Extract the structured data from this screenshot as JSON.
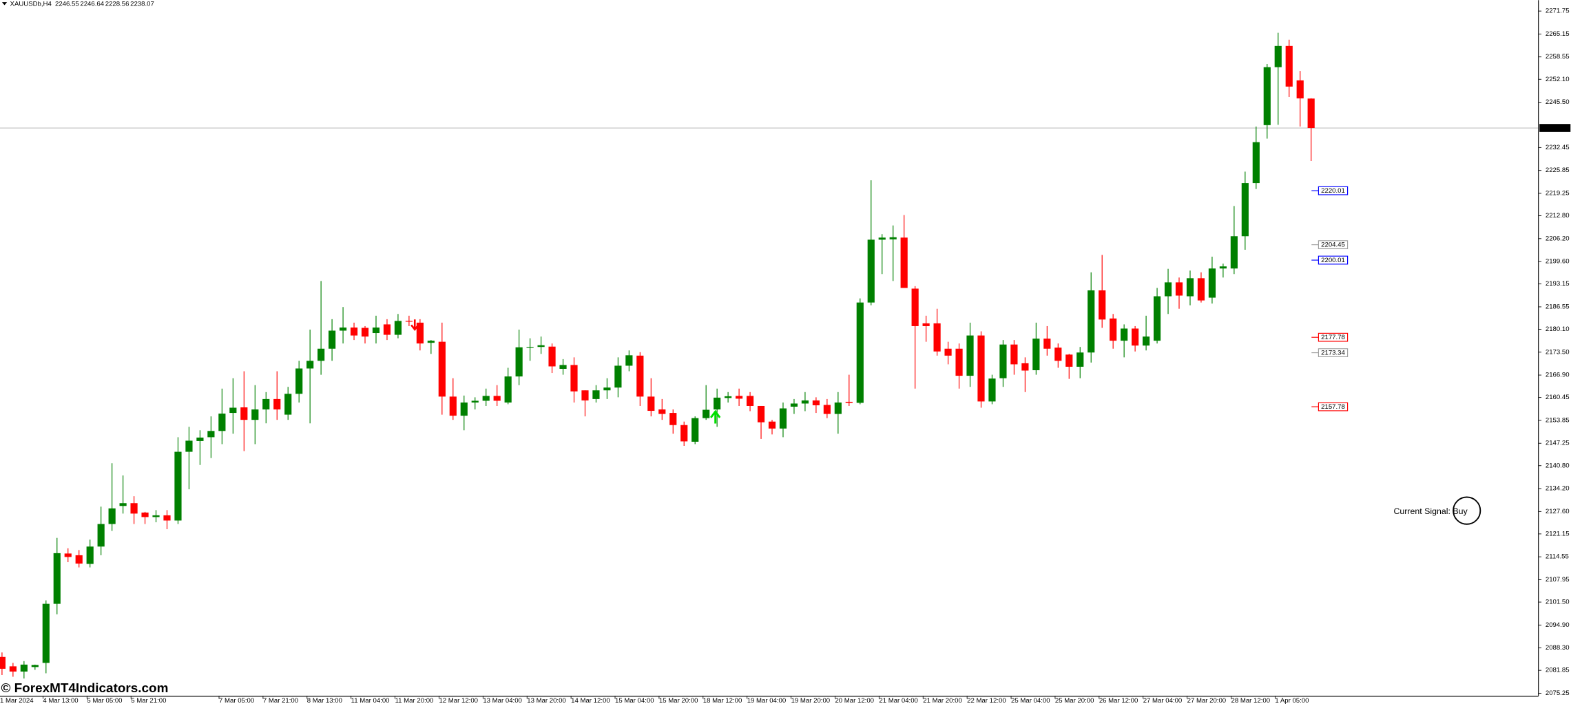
{
  "chart_data": {
    "type": "candlestick",
    "title": "XAUUSDb,H4",
    "header_ohlc": [
      2246.55,
      2246.64,
      2228.56,
      2238.07
    ],
    "watermark": "© ForexMT4Indicators.com",
    "signal_text": "Current Signal: Buy",
    "up_color": "#008000",
    "down_color": "#ff0000",
    "last_price": 2238.07,
    "ylim": [
      2074.5,
      2274.9
    ],
    "yticks": [
      2271.75,
      2265.15,
      2258.55,
      {
        "value": 2252.1,
        "label": "2252.10"
      },
      {
        "value": 2245.5,
        "label": "2245.50"
      },
      2232.45,
      2225.85,
      2219.25,
      {
        "value": 2212.8,
        "label": "2212.80"
      },
      {
        "value": 2206.2,
        "label": "2206.20"
      },
      {
        "value": 2199.6,
        "label": "2199.60"
      },
      2193.15,
      2186.55,
      {
        "value": 2180.1,
        "label": "2180.10"
      },
      {
        "value": 2173.5,
        "label": "2173.50"
      },
      {
        "value": 2166.9,
        "label": "2166.90"
      },
      2160.45,
      2153.85,
      2147.25,
      {
        "value": 2140.8,
        "label": "2140.80"
      },
      {
        "value": 2134.2,
        "label": "2134.20"
      },
      {
        "value": 2127.6,
        "label": "2127.60"
      },
      2121.15,
      2114.55,
      2107.95,
      {
        "value": 2101.5,
        "label": "2101.50"
      },
      {
        "value": 2094.9,
        "label": "2094.90"
      },
      {
        "value": 2088.3,
        "label": "2088.30"
      },
      2081.85,
      2075.25
    ],
    "levels": [
      {
        "value": 2220.01,
        "color": "#0000ff"
      },
      {
        "value": 2204.45,
        "color": "#a0a0a0"
      },
      {
        "value": 2200.01,
        "color": "#0000ff"
      },
      {
        "value": 2177.78,
        "color": "#ff0000"
      },
      {
        "value": 2173.34,
        "color": "#a0a0a0"
      },
      {
        "value": 2157.78,
        "color": "#ff0000"
      }
    ],
    "categories": [
      "1 Mar 2024",
      null,
      null,
      null,
      "4 Mar 13:00",
      null,
      null,
      null,
      "5 Mar 05:00",
      null,
      null,
      null,
      "5 Mar 21:00",
      null,
      null,
      null,
      null,
      null,
      null,
      null,
      "7 Mar 05:00",
      null,
      null,
      null,
      "7 Mar 21:00",
      null,
      null,
      null,
      "8 Mar 13:00",
      null,
      null,
      null,
      "11 Mar 04:00",
      null,
      null,
      null,
      "11 Mar 20:00",
      null,
      null,
      null,
      "12 Mar 12:00",
      null,
      null,
      null,
      "13 Mar 04:00",
      null,
      null,
      null,
      "13 Mar 20:00",
      null,
      null,
      null,
      "14 Mar 12:00",
      null,
      null,
      null,
      "15 Mar 04:00",
      null,
      null,
      null,
      "15 Mar 20:00",
      null,
      null,
      null,
      "18 Mar 12:00",
      null,
      null,
      null,
      "19 Mar 04:00",
      null,
      null,
      null,
      "19 Mar 20:00",
      null,
      null,
      null,
      "20 Mar 12:00",
      null,
      null,
      null,
      "21 Mar 04:00",
      null,
      null,
      null,
      "21 Mar 20:00",
      null,
      null,
      null,
      "22 Mar 12:00",
      null,
      null,
      null,
      "25 Mar 04:00",
      null,
      null,
      null,
      "25 Mar 20:00",
      null,
      null,
      null,
      "26 Mar 12:00",
      null,
      null,
      null,
      "27 Mar 04:00",
      null,
      null,
      null,
      "27 Mar 20:00",
      null,
      null,
      null,
      "28 Mar 12:00",
      null,
      null,
      null,
      "1 Apr 05:00",
      null,
      null,
      null
    ],
    "open": [
      2085.7,
      2083,
      2081.5,
      2082.8,
      2084,
      2101,
      2115.5,
      2115,
      2112.5,
      2117.5,
      2124,
      2129.2,
      2130,
      2127.3,
      2126,
      2126.5,
      2125,
      2144.8,
      2147.9,
      2149,
      2150.8,
      2156,
      2157.6,
      2154,
      2157,
      2160,
      2155.5,
      2161.5,
      2168.8,
      2171,
      2174.5,
      2179.7,
      2180.6,
      2180.5,
      2179,
      2181.5,
      2178.5,
      2182.5,
      2182,
      2176.2,
      2176.5,
      2160.7,
      2155.2,
      2159,
      2159.5,
      2160.9,
      2159,
      2166.5,
      2174.9,
      2175,
      2175.1,
      2168.7,
      2169.8,
      2162.5,
      2160,
      2162.5,
      2163.3,
      2169.6,
      2172.5,
      2160.7,
      2157,
      2156,
      2152.5,
      2147.7,
      2154.5,
      2157,
      2160.3,
      2160.9,
      2160.9,
      2158,
      2153.5,
      2151.5,
      2157.8,
      2158.7,
      2159.6,
      2158.3,
      2155.7,
      2159.2,
      2158.9,
      2187.8,
      2205.9,
      2206,
      2206.5,
      2191.8,
      2181.8,
      2181.8,
      2174.5,
      2174.5,
      2166.7,
      2178.3,
      2159.3,
      2166,
      2175.7,
      2170.3,
      2168.3,
      2177.4,
      2174.8,
      2172.8,
      2169.3,
      2173.4,
      2191.3,
      2183.2,
      2176.8,
      2180.3,
      2175.4,
      2176.8,
      2189.6,
      2193.6,
      2189.6,
      2194.8,
      2189.2,
      2197.6,
      2197.6,
      2206.9,
      2222.2,
      2238.9,
      2255.6,
      2261.7,
      2251.8,
      2246.55
    ],
    "high": [
      2087,
      2084,
      2084.5,
      2083.5,
      2102,
      2120,
      2117,
      2116.5,
      2119.5,
      2129,
      2141.5,
      2138,
      2132,
      2127.5,
      2128,
      2128,
      2149,
      2152,
      2151,
      2155,
      2163,
      2166,
      2168,
      2164,
      2162,
      2168,
      2163.5,
      2171,
      2180,
      2194,
      2183,
      2186.5,
      2182,
      2181,
      2184,
      2183,
      2184.5,
      2184,
      2183,
      2177,
      2182,
      2166,
      2161,
      2160.5,
      2163,
      2164,
      2169,
      2180,
      2177.5,
      2178,
      2176,
      2171.5,
      2172,
      2162.5,
      2164,
      2166,
      2172,
      2174,
      2173.5,
      2166,
      2160,
      2157,
      2153.5,
      2155,
      2164,
      2163,
      2162,
      2163,
      2162,
      2158,
      2154,
      2159,
      2160,
      2162,
      2160.5,
      2160,
      2162,
      2167,
      2189,
      2223,
      2207.5,
      2210,
      2213,
      2192.5,
      2184,
      2186,
      2176.5,
      2176,
      2182,
      2179.5,
      2167,
      2177,
      2177,
      2172,
      2182,
      2181,
      2176,
      2173,
      2175,
      2196.5,
      2201.5,
      2184.5,
      2181.5,
      2181,
      2184,
      2192,
      2197.5,
      2195,
      2197,
      2196.5,
      2201,
      2199,
      2215.6,
      2225.5,
      2238.5,
      2256.5,
      2265.5,
      2263.5,
      2254.5,
      2246.64
    ],
    "low": [
      2080.5,
      2080,
      2079.5,
      2082,
      2081,
      2098,
      2113,
      2111.5,
      2111.5,
      2115,
      2122,
      2127,
      2124,
      2124,
      2124.5,
      2122.5,
      2124,
      2134,
      2141,
      2143,
      2147,
      2150,
      2145,
      2147,
      2153,
      2154,
      2154,
      2159,
      2153,
      2167,
      2171,
      2176,
      2177,
      2176,
      2176,
      2177,
      2177.5,
      2181,
      2174,
      2173,
      2155.5,
      2154,
      2151,
      2157,
      2158,
      2158,
      2158.5,
      2164,
      2171,
      2173,
      2167.5,
      2167,
      2159,
      2155,
      2159,
      2160,
      2160.5,
      2168,
      2158,
      2155,
      2154,
      2150,
      2146.5,
      2147,
      2154,
      2152,
      2159,
      2158,
      2156.5,
      2148.5,
      2149.8,
      2149,
      2155.7,
      2156.5,
      2156,
      2154.5,
      2150,
      2158,
      2158.5,
      2187,
      2196,
      2194,
      2192,
      2163,
      2176.5,
      2172.5,
      2170,
      2163,
      2163.5,
      2157.5,
      2158.5,
      2163.5,
      2167,
      2162,
      2167,
      2172.5,
      2169,
      2165.8,
      2166,
      2170.5,
      2180.5,
      2174.5,
      2172,
      2173.7,
      2174,
      2176,
      2184.5,
      2186,
      2187,
      2187.8,
      2187.5,
      2195,
      2196,
      2203,
      2220.5,
      2235,
      2239,
      2247,
      2238.5,
      2228.56
    ],
    "close": [
      2082.3,
      2081.5,
      2083.5,
      2083.4,
      2101,
      2115.6,
      2114.5,
      2112.6,
      2117.5,
      2124,
      2128.5,
      2130,
      2127,
      2126,
      2126.5,
      2125,
      2144.8,
      2148,
      2148.9,
      2150.8,
      2155.8,
      2157.5,
      2154,
      2157,
      2160,
      2157,
      2161.5,
      2168.8,
      2171,
      2174.5,
      2179.7,
      2180.6,
      2178.3,
      2178,
      2180.6,
      2178.5,
      2182.5,
      2182.3,
      2176,
      2176.8,
      2160.7,
      2155.2,
      2159,
      2159.5,
      2160.9,
      2159.5,
      2166.5,
      2174.9,
      2175,
      2175.5,
      2169.4,
      2169.8,
      2162.2,
      2159.6,
      2162.5,
      2163.3,
      2169.6,
      2172.6,
      2160.7,
      2156.6,
      2155.7,
      2152.5,
      2147.8,
      2154.5,
      2156.9,
      2160.4,
      2160.8,
      2160.1,
      2158,
      2153.3,
      2151.5,
      2157.3,
      2158.7,
      2159.6,
      2158.2,
      2155.7,
      2159,
      2158.9,
      2187.8,
      2205.9,
      2206.5,
      2206.6,
      2192,
      2181,
      2181,
      2173.7,
      2172.5,
      2166.7,
      2178.3,
      2159.3,
      2165.9,
      2175.7,
      2170,
      2168.2,
      2177.4,
      2174.5,
      2171,
      2169.3,
      2173.4,
      2191.3,
      2182.9,
      2176.8,
      2180.3,
      2175.4,
      2178,
      2189.6,
      2193.6,
      2189.8,
      2194.8,
      2188.4,
      2197.6,
      2198.2,
      2206.9,
      2222.2,
      2234,
      2255.6,
      2261.7,
      2250,
      2246.6,
      2238.07
    ]
  }
}
